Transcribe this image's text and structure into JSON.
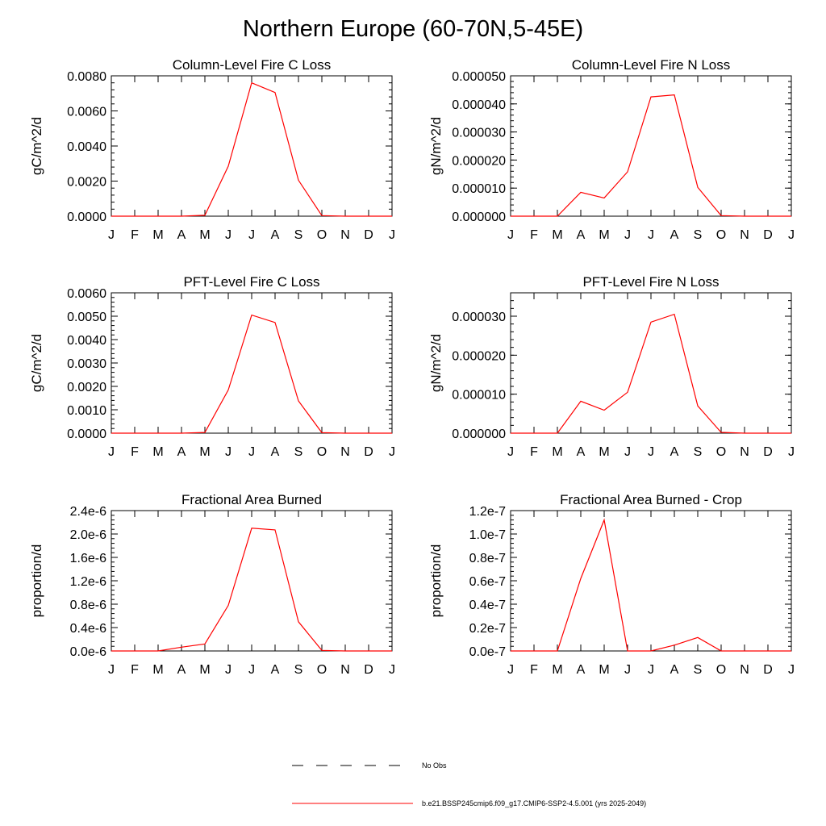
{
  "title": "Northern Europe (60-70N,5-45E)",
  "chart_data": [
    {
      "type": "line",
      "title": "Column-Level Fire C Loss",
      "ylabel": "gC/m^2/d",
      "categories": [
        "J",
        "F",
        "M",
        "A",
        "M",
        "J",
        "J",
        "A",
        "S",
        "O",
        "N",
        "D",
        "J"
      ],
      "ylim": [
        0,
        0.008
      ],
      "yticks": [
        "0.0000",
        "0.0020",
        "0.0040",
        "0.0060",
        "0.0080"
      ],
      "ytick_values": [
        0,
        0.002,
        0.004,
        0.006,
        0.008
      ],
      "series": [
        {
          "name": "b.e21.BSSP245cmip6.f09_g17.CMIP6-SSP2-4.5.001 (yrs 2025-2049)",
          "color": "#ff0000",
          "values": [
            0,
            0,
            0,
            0,
            5e-05,
            0.00285,
            0.0076,
            0.00705,
            0.00205,
            3e-05,
            0,
            0,
            0
          ]
        }
      ]
    },
    {
      "type": "line",
      "title": "Column-Level Fire N Loss",
      "ylabel": "gN/m^2/d",
      "categories": [
        "J",
        "F",
        "M",
        "A",
        "M",
        "J",
        "J",
        "A",
        "S",
        "O",
        "N",
        "D",
        "J"
      ],
      "ylim": [
        0,
        5e-05
      ],
      "yticks": [
        "0.000000",
        "0.000010",
        "0.000020",
        "0.000030",
        "0.000040",
        "0.000050"
      ],
      "ytick_values": [
        0,
        1e-05,
        2e-05,
        3e-05,
        4e-05,
        5e-05
      ],
      "series": [
        {
          "name": "b.e21.BSSP245cmip6.f09_g17.CMIP6-SSP2-4.5.001 (yrs 2025-2049)",
          "color": "#ff0000",
          "values": [
            0,
            0,
            0,
            8.5e-06,
            6.5e-06,
            1.58e-05,
            4.25e-05,
            4.32e-05,
            1.03e-05,
            2e-07,
            0,
            0,
            0
          ]
        }
      ]
    },
    {
      "type": "line",
      "title": "PFT-Level Fire C Loss",
      "ylabel": "gC/m^2/d",
      "categories": [
        "J",
        "F",
        "M",
        "A",
        "M",
        "J",
        "J",
        "A",
        "S",
        "O",
        "N",
        "D",
        "J"
      ],
      "ylim": [
        0,
        0.006
      ],
      "yticks": [
        "0.0000",
        "0.0010",
        "0.0020",
        "0.0030",
        "0.0040",
        "0.0050",
        "0.0060"
      ],
      "ytick_values": [
        0,
        0.001,
        0.002,
        0.003,
        0.004,
        0.005,
        0.006
      ],
      "series": [
        {
          "name": "b.e21.BSSP245cmip6.f09_g17.CMIP6-SSP2-4.5.001 (yrs 2025-2049)",
          "color": "#ff0000",
          "values": [
            0,
            0,
            0,
            0,
            3e-05,
            0.00185,
            0.00505,
            0.00473,
            0.00138,
            2e-05,
            0,
            0,
            0
          ]
        }
      ]
    },
    {
      "type": "line",
      "title": "PFT-Level Fire N Loss",
      "ylabel": "gN/m^2/d",
      "categories": [
        "J",
        "F",
        "M",
        "A",
        "M",
        "J",
        "J",
        "A",
        "S",
        "O",
        "N",
        "D",
        "J"
      ],
      "ylim": [
        0,
        3.6e-05
      ],
      "yticks": [
        "0.000000",
        "0.000010",
        "0.000020",
        "0.000030"
      ],
      "ytick_values": [
        0,
        1e-05,
        2e-05,
        3e-05
      ],
      "series": [
        {
          "name": "b.e21.BSSP245cmip6.f09_g17.CMIP6-SSP2-4.5.001 (yrs 2025-2049)",
          "color": "#ff0000",
          "values": [
            0,
            0,
            0,
            8.2e-06,
            5.9e-06,
            1.05e-05,
            2.85e-05,
            3.05e-05,
            7e-06,
            2e-07,
            0,
            0,
            0
          ]
        }
      ]
    },
    {
      "type": "line",
      "title": "Fractional Area Burned",
      "ylabel": "proportion/d",
      "categories": [
        "J",
        "F",
        "M",
        "A",
        "M",
        "J",
        "J",
        "A",
        "S",
        "O",
        "N",
        "D",
        "J"
      ],
      "ylim": [
        0,
        2.4
      ],
      "yticks": [
        "0.0e-6",
        "0.4e-6",
        "0.8e-6",
        "1.2e-6",
        "1.6e-6",
        "2.0e-6",
        "2.4e-6"
      ],
      "ytick_values": [
        0,
        0.4,
        0.8,
        1.2,
        1.6,
        2.0,
        2.4
      ],
      "series": [
        {
          "name": "b.e21.BSSP245cmip6.f09_g17.CMIP6-SSP2-4.5.001 (yrs 2025-2049)",
          "color": "#ff0000",
          "values": [
            0,
            0,
            0,
            0.065,
            0.12,
            0.78,
            2.1,
            2.07,
            0.5,
            0.01,
            0,
            0,
            0
          ]
        }
      ]
    },
    {
      "type": "line",
      "title": "Fractional Area Burned - Crop",
      "ylabel": "proportion/d",
      "categories": [
        "J",
        "F",
        "M",
        "A",
        "M",
        "J",
        "J",
        "A",
        "S",
        "O",
        "N",
        "D",
        "J"
      ],
      "ylim": [
        0,
        1.2
      ],
      "yticks": [
        "0.0e-7",
        "0.2e-7",
        "0.4e-7",
        "0.6e-7",
        "0.8e-7",
        "1.0e-7",
        "1.2e-7"
      ],
      "ytick_values": [
        0,
        0.2,
        0.4,
        0.6,
        0.8,
        1.0,
        1.2
      ],
      "series": [
        {
          "name": "b.e21.BSSP245cmip6.f09_g17.CMIP6-SSP2-4.5.001 (yrs 2025-2049)",
          "color": "#ff0000",
          "values": [
            0,
            0,
            0,
            0.62,
            1.12,
            0,
            0,
            0.05,
            0.115,
            0,
            0,
            0,
            0
          ]
        }
      ]
    }
  ],
  "legend": [
    {
      "label": "No Obs",
      "style": "dashed",
      "color": "#000000"
    },
    {
      "label": "b.e21.BSSP245cmip6.f09_g17.CMIP6-SSP2-4.5.001 (yrs 2025-2049)",
      "style": "solid",
      "color": "#ff0000"
    }
  ]
}
